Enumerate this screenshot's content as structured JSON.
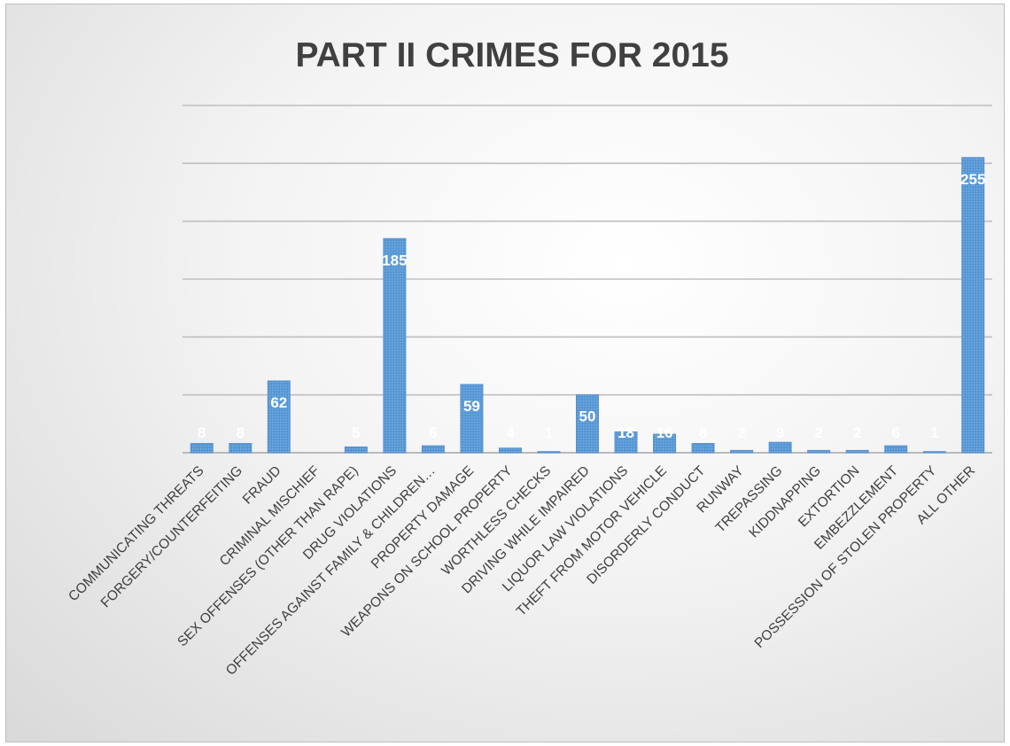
{
  "chart_data": {
    "type": "bar",
    "title": "PART II CRIMES FOR 2015",
    "xlabel": "",
    "ylabel": "",
    "ylim": [
      0,
      300
    ],
    "grid": true,
    "categories": [
      "COMMUNICATING THREATS",
      "FORGERY/COUNTERFEITING",
      "FRAUD",
      "CRIMINAL MISCHIEF",
      "SEX OFFENSES (OTHER THAN RAPE)",
      "DRUG VIOLATIONS",
      "OFFENSES AGAINST FAMILY & CHILDREN…",
      "PROPERTY DAMAGE",
      "WEAPONS ON SCHOOL PROPERTY",
      "WORTHLESS CHECKS",
      "DRIVING WHILE IMPAIRED",
      "LIQUOR LAW VIOLATIONS",
      "THEFT FROM MOTOR VEHICLE",
      "DISORDERLY CONDUCT",
      "RUNWAY",
      "TREPASSING",
      "KIDDNAPPING",
      "EXTORTION",
      "EMBEZZLEMENT",
      "POSSESSION OF STOLEN PROPERTY",
      "ALL OTHER"
    ],
    "values": [
      8,
      8,
      62,
      null,
      5,
      185,
      6,
      59,
      4,
      1,
      50,
      18,
      16,
      8,
      2,
      9,
      2,
      2,
      6,
      1,
      255
    ],
    "labels": [
      "8",
      "8",
      "62",
      "",
      "5",
      "185",
      "6",
      "59",
      "4",
      "1",
      "50",
      "18",
      "16",
      "8",
      "2",
      "9",
      "2",
      "2",
      "6",
      "1",
      "255"
    ],
    "bar_color": "#5b9bd5",
    "label_color": "#ffffff",
    "grid_color": "#bfbfbf"
  }
}
